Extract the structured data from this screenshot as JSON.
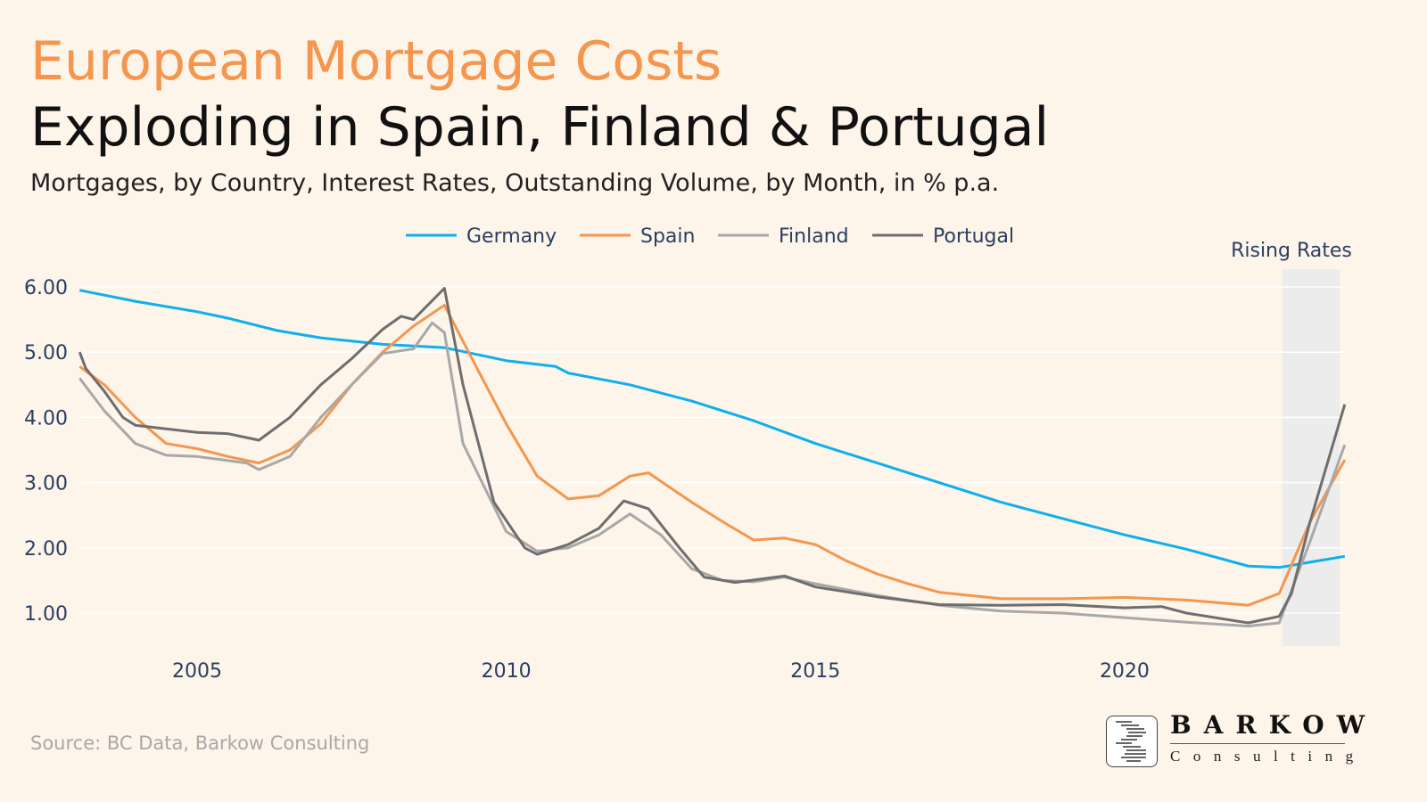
{
  "header": {
    "title": "European Mortgage Costs",
    "subtitle": "Exploding in Spain, Finland & Portugal",
    "description": "Mortgages, by Country, Interest Rates, Outstanding Volume, by Month,  in % p.a."
  },
  "footer": {
    "source": "Source: BC Data, Barkow Consulting",
    "logo_name": "BARKOW",
    "logo_sub": "Consulting"
  },
  "chart_data": {
    "type": "line",
    "xlabel": "",
    "ylabel": "",
    "xlim": [
      2003.1,
      2023.6
    ],
    "ylim": [
      0.5,
      6.4
    ],
    "x_ticks": [
      2005,
      2010,
      2015,
      2020
    ],
    "y_ticks": [
      1,
      2,
      3,
      4,
      5,
      6
    ],
    "y_tick_labels": [
      "1.00",
      "2.00",
      "3.00",
      "4.00",
      "5.00",
      "6.00"
    ],
    "grid": "horizontal",
    "legend": "top",
    "annotation": {
      "label": "Rising Rates",
      "x_start": 2022.55,
      "x_end": 2023.48,
      "color": "#ececec"
    },
    "series": [
      {
        "name": "Germany",
        "color": "#0db0ec",
        "points": [
          [
            2003.1,
            5.95
          ],
          [
            2004,
            5.78
          ],
          [
            2005,
            5.62
          ],
          [
            2005.5,
            5.52
          ],
          [
            2006.3,
            5.33
          ],
          [
            2007,
            5.22
          ],
          [
            2008,
            5.12
          ],
          [
            2009,
            5.07
          ],
          [
            2010,
            4.87
          ],
          [
            2010.8,
            4.78
          ],
          [
            2011,
            4.68
          ],
          [
            2012,
            4.5
          ],
          [
            2013,
            4.25
          ],
          [
            2014,
            3.95
          ],
          [
            2015,
            3.6
          ],
          [
            2016,
            3.3
          ],
          [
            2017,
            3.0
          ],
          [
            2018,
            2.7
          ],
          [
            2019,
            2.45
          ],
          [
            2020,
            2.2
          ],
          [
            2021,
            1.98
          ],
          [
            2022,
            1.72
          ],
          [
            2022.5,
            1.7
          ],
          [
            2023,
            1.78
          ],
          [
            2023.56,
            1.87
          ]
        ]
      },
      {
        "name": "Spain",
        "color": "#f5964f",
        "points": [
          [
            2003.1,
            4.78
          ],
          [
            2003.5,
            4.5
          ],
          [
            2004,
            4.0
          ],
          [
            2004.5,
            3.6
          ],
          [
            2005,
            3.52
          ],
          [
            2005.5,
            3.4
          ],
          [
            2006,
            3.3
          ],
          [
            2006.5,
            3.5
          ],
          [
            2007,
            3.9
          ],
          [
            2007.5,
            4.5
          ],
          [
            2008,
            5.0
          ],
          [
            2008.5,
            5.4
          ],
          [
            2009,
            5.72
          ],
          [
            2009.5,
            4.8
          ],
          [
            2010,
            3.9
          ],
          [
            2010.5,
            3.1
          ],
          [
            2011,
            2.75
          ],
          [
            2011.5,
            2.8
          ],
          [
            2012,
            3.1
          ],
          [
            2012.3,
            3.15
          ],
          [
            2013,
            2.7
          ],
          [
            2013.5,
            2.4
          ],
          [
            2014,
            2.12
          ],
          [
            2014.5,
            2.15
          ],
          [
            2015,
            2.05
          ],
          [
            2015.5,
            1.8
          ],
          [
            2016,
            1.6
          ],
          [
            2016.5,
            1.45
          ],
          [
            2017,
            1.32
          ],
          [
            2018,
            1.22
          ],
          [
            2019,
            1.22
          ],
          [
            2020,
            1.24
          ],
          [
            2021,
            1.2
          ],
          [
            2022,
            1.12
          ],
          [
            2022.5,
            1.3
          ],
          [
            2023,
            2.4
          ],
          [
            2023.56,
            3.35
          ]
        ]
      },
      {
        "name": "Finland",
        "color": "#a8a8a8",
        "points": [
          [
            2003.1,
            4.6
          ],
          [
            2003.5,
            4.1
          ],
          [
            2004,
            3.6
          ],
          [
            2004.5,
            3.42
          ],
          [
            2005,
            3.4
          ],
          [
            2005.8,
            3.3
          ],
          [
            2006,
            3.2
          ],
          [
            2006.5,
            3.4
          ],
          [
            2007,
            4.0
          ],
          [
            2007.5,
            4.5
          ],
          [
            2008,
            4.98
          ],
          [
            2008.5,
            5.05
          ],
          [
            2008.8,
            5.45
          ],
          [
            2009,
            5.3
          ],
          [
            2009.3,
            3.6
          ],
          [
            2010,
            2.25
          ],
          [
            2010.5,
            1.95
          ],
          [
            2011,
            2.0
          ],
          [
            2011.5,
            2.2
          ],
          [
            2012,
            2.52
          ],
          [
            2012.5,
            2.2
          ],
          [
            2013,
            1.68
          ],
          [
            2013.5,
            1.5
          ],
          [
            2014,
            1.48
          ],
          [
            2014.5,
            1.55
          ],
          [
            2015,
            1.45
          ],
          [
            2016,
            1.27
          ],
          [
            2017,
            1.12
          ],
          [
            2018,
            1.03
          ],
          [
            2019,
            1.0
          ],
          [
            2020,
            0.93
          ],
          [
            2021,
            0.86
          ],
          [
            2022,
            0.8
          ],
          [
            2022.5,
            0.85
          ],
          [
            2023,
            2.1
          ],
          [
            2023.56,
            3.58
          ]
        ]
      },
      {
        "name": "Portugal",
        "color": "#6e6e6e",
        "points": [
          [
            2003.1,
            5.0
          ],
          [
            2003.2,
            4.75
          ],
          [
            2003.5,
            4.4
          ],
          [
            2003.8,
            4.0
          ],
          [
            2004,
            3.88
          ],
          [
            2005,
            3.77
          ],
          [
            2005.5,
            3.75
          ],
          [
            2006,
            3.65
          ],
          [
            2006.5,
            4.0
          ],
          [
            2007,
            4.5
          ],
          [
            2007.5,
            4.9
          ],
          [
            2008,
            5.35
          ],
          [
            2008.3,
            5.55
          ],
          [
            2008.5,
            5.5
          ],
          [
            2009,
            5.98
          ],
          [
            2009.3,
            4.5
          ],
          [
            2009.8,
            2.7
          ],
          [
            2010.3,
            2.0
          ],
          [
            2010.5,
            1.9
          ],
          [
            2011,
            2.05
          ],
          [
            2011.5,
            2.3
          ],
          [
            2011.9,
            2.72
          ],
          [
            2012.3,
            2.6
          ],
          [
            2012.8,
            2.0
          ],
          [
            2013.2,
            1.55
          ],
          [
            2013.7,
            1.47
          ],
          [
            2014.5,
            1.57
          ],
          [
            2015,
            1.4
          ],
          [
            2016,
            1.25
          ],
          [
            2017,
            1.13
          ],
          [
            2018,
            1.12
          ],
          [
            2019,
            1.13
          ],
          [
            2020,
            1.08
          ],
          [
            2020.6,
            1.1
          ],
          [
            2021,
            1.0
          ],
          [
            2022,
            0.85
          ],
          [
            2022.5,
            0.95
          ],
          [
            2022.7,
            1.3
          ],
          [
            2023,
            2.4
          ],
          [
            2023.56,
            4.2
          ]
        ]
      }
    ]
  }
}
